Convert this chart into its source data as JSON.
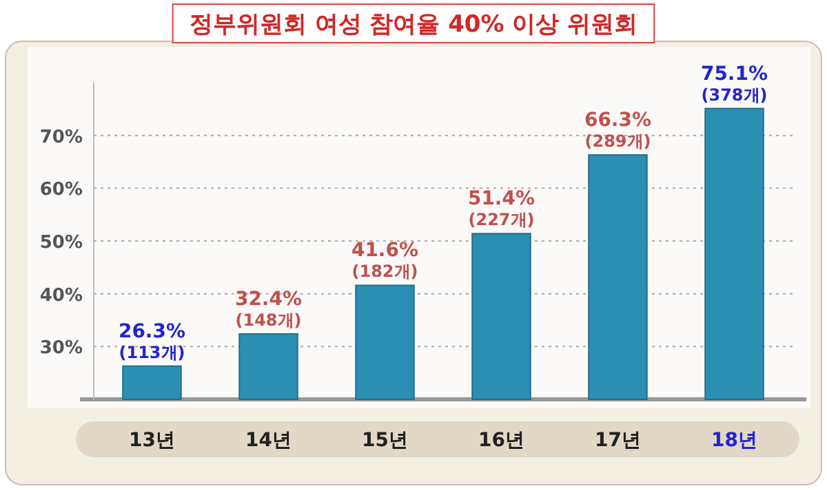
{
  "chart_data": {
    "type": "bar",
    "title": "정부위원회 여성 참여율 40% 이상 위원회",
    "categories": [
      "13년",
      "14년",
      "15년",
      "16년",
      "17년",
      "18년"
    ],
    "values": [
      26.3,
      32.4,
      41.6,
      51.4,
      66.3,
      75.1
    ],
    "value_labels": [
      "26.3%\n(113개)",
      "32.4%\n(148개)",
      "41.6%\n(182개)",
      "51.4%\n(227개)",
      "66.3%\n(289개)",
      "75.1%\n(378개)"
    ],
    "color": "#2b8fb3",
    "ylim": [
      20,
      80
    ],
    "yticks": [
      {
        "value": 30,
        "label": "30%"
      },
      {
        "value": 40,
        "label": "40%"
      },
      {
        "value": 50,
        "label": "50%"
      },
      {
        "value": 60,
        "label": "60%"
      },
      {
        "value": 70,
        "label": "70%"
      }
    ],
    "grid": "y"
  }
}
